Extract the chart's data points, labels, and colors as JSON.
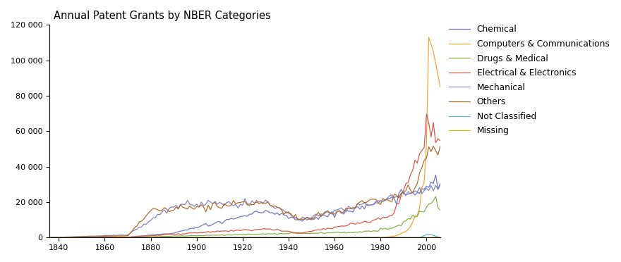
{
  "title": "Annual Patent Grants by NBER Categories",
  "years_start": 1836,
  "years_end": 2006,
  "colors": {
    "Chemical": "#6674c4",
    "Computers & Communications": "#f0a030",
    "Drugs & Medical": "#80b040",
    "Electrical & Electronics": "#e05040",
    "Mechanical": "#8080c0",
    "Others": "#b06820",
    "Not Classified": "#60b0d0",
    "Missing": "#e0c000"
  },
  "legend_order": [
    "Chemical",
    "Computers & Communications",
    "Drugs & Medical",
    "Electrical & Electronics",
    "Mechanical",
    "Others",
    "Not Classified",
    "Missing"
  ],
  "ylim": [
    0,
    120000
  ],
  "xlim": [
    1836,
    2006
  ],
  "yticks": [
    0,
    20000,
    40000,
    60000,
    80000,
    100000,
    120000
  ]
}
